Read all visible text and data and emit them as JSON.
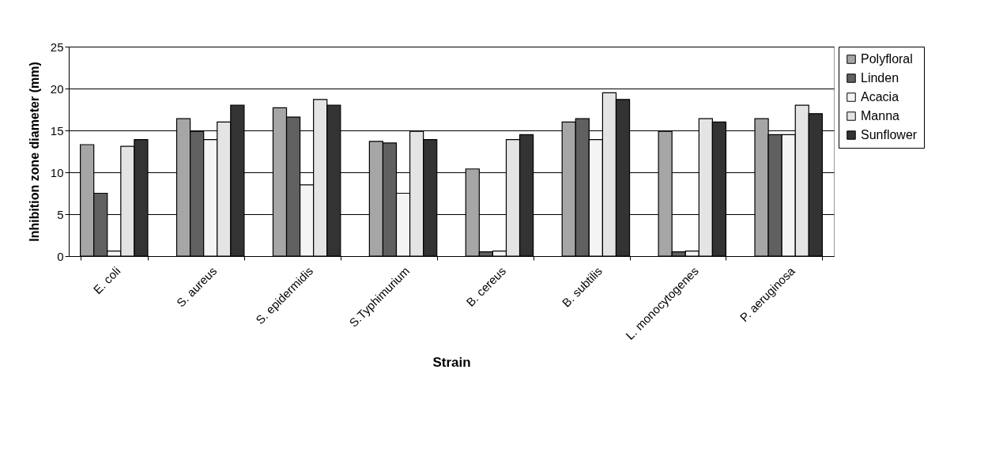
{
  "chart_data": {
    "type": "bar",
    "xlabel": "Strain",
    "ylabel": "Inhibition zone diameter (mm)",
    "categories": [
      "E. coli",
      "S. aureus",
      "S. epidermidis",
      "S.Typhimurium",
      "B. cereus",
      "B. subtilis",
      "L. monocytogenes",
      "P. aeruginosa"
    ],
    "series": [
      {
        "name": "Polyfloral",
        "color": "#a6a6a6",
        "values": [
          13.3,
          16.4,
          17.7,
          13.7,
          10.4,
          16.0,
          14.9,
          16.4
        ]
      },
      {
        "name": "Linden",
        "color": "#606060",
        "values": [
          7.5,
          14.9,
          16.6,
          13.5,
          0.5,
          16.4,
          0.5,
          14.5
        ]
      },
      {
        "name": "Acacia",
        "color": "#f4f4f4",
        "values": [
          0.6,
          13.9,
          8.5,
          7.5,
          0.6,
          13.9,
          0.6,
          14.5
        ]
      },
      {
        "name": "Manna",
        "color": "#e4e4e4",
        "values": [
          13.1,
          16.0,
          18.7,
          14.9,
          13.9,
          19.5,
          16.4,
          18.0
        ]
      },
      {
        "name": "Sunflower",
        "color": "#333333",
        "values": [
          13.9,
          18.0,
          18.0,
          13.9,
          14.5,
          18.7,
          16.0,
          17.0
        ]
      }
    ],
    "ylim": [
      0,
      25
    ],
    "yticks": [
      0,
      5,
      10,
      15,
      20,
      25
    ],
    "grid": "y",
    "legend": "right"
  }
}
